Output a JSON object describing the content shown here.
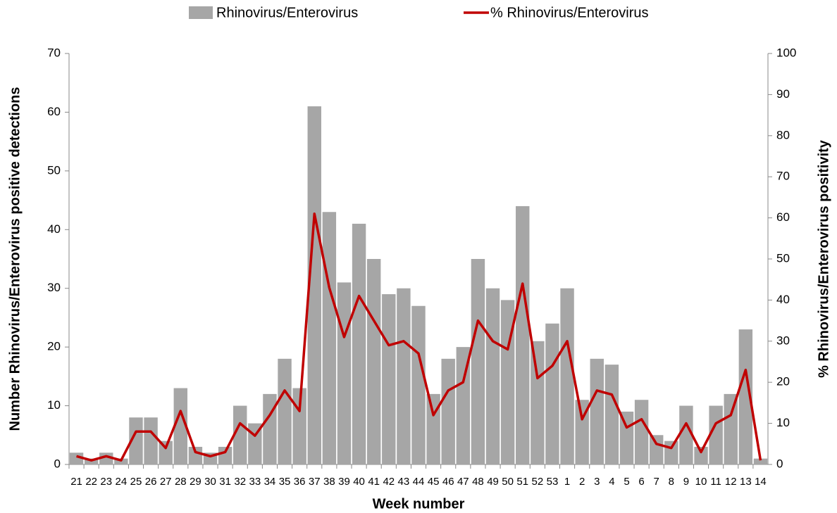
{
  "chart_data": {
    "type": "bar_line",
    "categories": [
      "21",
      "22",
      "23",
      "24",
      "25",
      "26",
      "27",
      "28",
      "29",
      "30",
      "31",
      "32",
      "33",
      "34",
      "35",
      "36",
      "37",
      "38",
      "39",
      "40",
      "41",
      "42",
      "43",
      "44",
      "45",
      "46",
      "47",
      "48",
      "49",
      "50",
      "51",
      "52",
      "53",
      "1",
      "2",
      "3",
      "4",
      "5",
      "6",
      "7",
      "8",
      "9",
      "10",
      "11",
      "12",
      "13",
      "14"
    ],
    "x_label": "Week number",
    "y_label": "Number Rhinovirus/Enterovirus positive detections",
    "y2_label": "% Rhinovirus/Enterovirus positivity",
    "ylim": [
      0,
      70
    ],
    "yticks": [
      0,
      10,
      20,
      30,
      40,
      50,
      60,
      70
    ],
    "y2lim": [
      0,
      100
    ],
    "y2ticks": [
      0,
      10,
      20,
      30,
      40,
      50,
      60,
      70,
      80,
      90,
      100
    ],
    "series": [
      {
        "name": "Rhinovirus/Enterovirus",
        "type": "bar",
        "color": "#a6a6a6",
        "values": [
          2,
          1,
          2,
          1,
          8,
          8,
          4,
          13,
          3,
          2,
          3,
          10,
          7,
          12,
          18,
          13,
          61,
          43,
          31,
          41,
          35,
          29,
          30,
          27,
          12,
          18,
          20,
          35,
          30,
          28,
          44,
          21,
          24,
          30,
          11,
          18,
          17,
          9,
          11,
          5,
          4,
          10,
          3,
          10,
          12,
          23,
          1
        ]
      },
      {
        "name": "% Rhinovirus/Enterovirus",
        "type": "line",
        "axis": "y2",
        "color": "#c00000",
        "values": [
          2,
          1,
          2,
          1,
          8,
          8,
          4,
          13,
          3,
          2,
          3,
          10,
          7,
          12,
          18,
          13,
          61,
          43,
          31,
          41,
          35,
          29,
          30,
          27,
          12,
          18,
          20,
          35,
          30,
          28,
          44,
          21,
          24,
          30,
          11,
          18,
          17,
          9,
          11,
          5,
          4,
          10,
          3,
          10,
          12,
          23,
          1
        ]
      }
    ]
  }
}
